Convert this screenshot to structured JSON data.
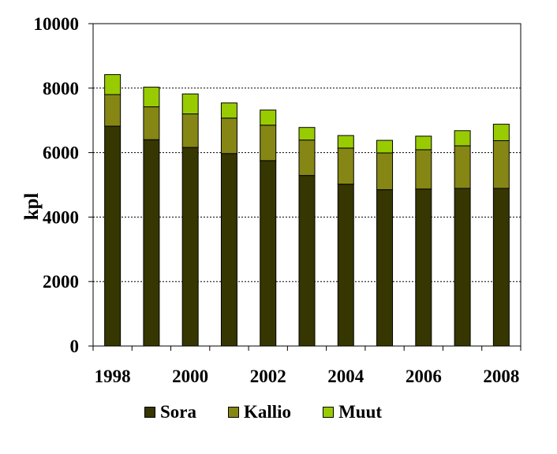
{
  "chart_data": {
    "type": "bar",
    "stacked": true,
    "categories": [
      "1998",
      "1999",
      "2000",
      "2001",
      "2002",
      "2003",
      "2004",
      "2005",
      "2006",
      "2007",
      "2008"
    ],
    "x_tick_labels": [
      "1998",
      "",
      "2000",
      "",
      "2002",
      "",
      "2004",
      "",
      "2006",
      "",
      "2008"
    ],
    "series": [
      {
        "name": "Sora",
        "color": "#363600",
        "values": [
          6820,
          6400,
          6160,
          5970,
          5750,
          5290,
          5020,
          4850,
          4870,
          4890,
          4890
        ]
      },
      {
        "name": "Kallio",
        "color": "#868614",
        "values": [
          980,
          1020,
          1040,
          1100,
          1100,
          1100,
          1120,
          1140,
          1220,
          1320,
          1480
        ]
      },
      {
        "name": "Muut",
        "color": "#99cc00",
        "values": [
          620,
          610,
          620,
          470,
          470,
          390,
          390,
          390,
          420,
          470,
          510
        ]
      }
    ],
    "xlabel": "",
    "ylabel": "kpl",
    "ylim": [
      0,
      10000
    ],
    "y_ticks": [
      "0",
      "2000",
      "4000",
      "6000",
      "8000",
      "10000"
    ],
    "grid": "horizontal dashed",
    "legend_position": "bottom"
  }
}
